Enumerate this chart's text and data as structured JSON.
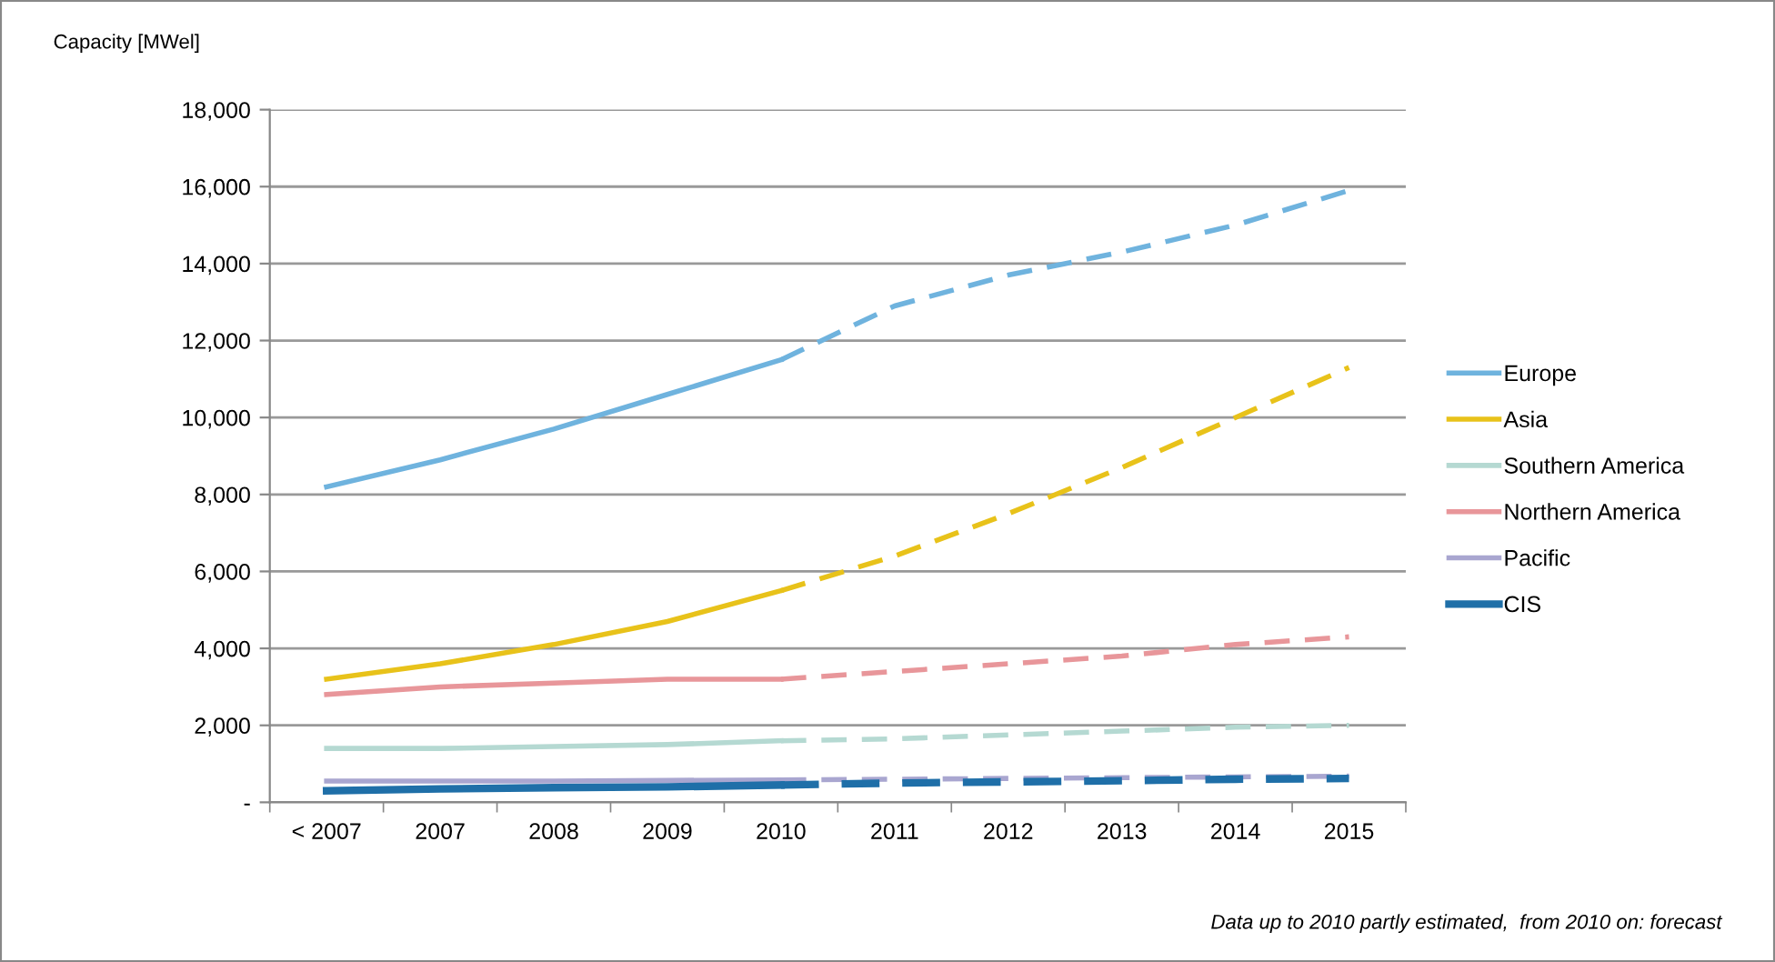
{
  "chart_data": {
    "type": "line",
    "ylabel": "Capacity [MWel]",
    "categories": [
      "< 2007",
      "2007",
      "2008",
      "2009",
      "2010",
      "2011",
      "2012",
      "2013",
      "2014",
      "2015"
    ],
    "series": [
      {
        "name": "Europe",
        "color": "#6fb3de",
        "line_style": "solid",
        "values": [
          8200,
          8900,
          9700,
          10600,
          11500,
          null,
          null,
          null,
          null,
          null
        ]
      },
      {
        "name": "Asia",
        "color": "#e8c21a",
        "line_style": "solid",
        "values": [
          3200,
          3600,
          4100,
          4700,
          5500,
          null,
          null,
          null,
          null,
          null
        ]
      },
      {
        "name": "Southern America",
        "color": "#b5d9d2",
        "line_style": "solid",
        "values": [
          1400,
          1400,
          1450,
          1500,
          1600,
          null,
          null,
          null,
          null,
          null
        ]
      },
      {
        "name": "Northern America",
        "color": "#e8969a",
        "line_style": "solid",
        "values": [
          2800,
          3000,
          3100,
          3200,
          3200,
          null,
          null,
          null,
          null,
          null
        ]
      },
      {
        "name": "Pacific",
        "color": "#a9a6d0",
        "line_style": "solid",
        "values": [
          550,
          550,
          550,
          570,
          580,
          null,
          null,
          null,
          null,
          null
        ]
      },
      {
        "name": "CIS",
        "color": "#1f6fa8",
        "line_style": "solid",
        "values": [
          300,
          350,
          380,
          400,
          450,
          null,
          null,
          null,
          null,
          null
        ]
      },
      {
        "color": "#6fb3de",
        "line_style": "dashed",
        "values": [
          null,
          null,
          null,
          null,
          11500,
          12900,
          13700,
          14300,
          15000,
          15900
        ]
      },
      {
        "color": "#e8c21a",
        "line_style": "dashed",
        "values": [
          null,
          null,
          null,
          null,
          5500,
          6400,
          7500,
          8700,
          10000,
          11300
        ]
      },
      {
        "color": "#b5d9d2",
        "line_style": "dashed",
        "values": [
          null,
          null,
          null,
          null,
          1600,
          1650,
          1750,
          1850,
          1950,
          2000
        ]
      },
      {
        "color": "#e8969a",
        "line_style": "dashed",
        "values": [
          null,
          null,
          null,
          null,
          3200,
          3400,
          3600,
          3800,
          4100,
          4300
        ]
      },
      {
        "color": "#a9a6d0",
        "line_style": "dashed",
        "values": [
          null,
          null,
          null,
          null,
          580,
          600,
          620,
          640,
          660,
          680
        ]
      },
      {
        "color": "#1f6fa8",
        "line_style": "dashed",
        "values": [
          null,
          null,
          null,
          null,
          450,
          500,
          530,
          560,
          600,
          620
        ]
      }
    ],
    "ylim": [
      0,
      18000
    ],
    "yticks": [
      {
        "value": 0,
        "label": "-"
      },
      {
        "value": 2000,
        "label": "2,000"
      },
      {
        "value": 4000,
        "label": "4,000"
      },
      {
        "value": 6000,
        "label": "6,000"
      },
      {
        "value": 8000,
        "label": "8,000"
      },
      {
        "value": 10000,
        "label": "10,000"
      },
      {
        "value": 12000,
        "label": "12,000"
      },
      {
        "value": 14000,
        "label": "14,000"
      },
      {
        "value": 16000,
        "label": "16,000"
      },
      {
        "value": 18000,
        "label": "18,000"
      }
    ],
    "grid": "y",
    "legend": "right",
    "marker": "none",
    "annotations": [
      "Data up to 2010 partly estimated,  from 2010 on: forecast"
    ]
  }
}
